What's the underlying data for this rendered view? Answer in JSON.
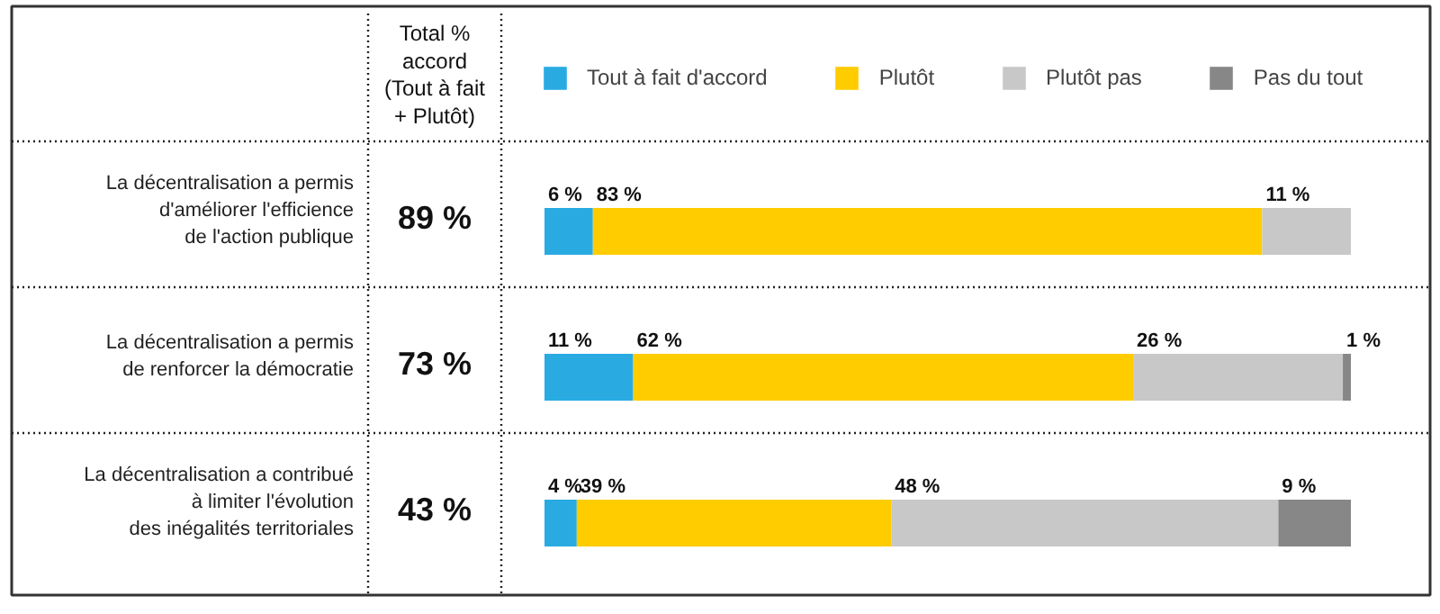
{
  "chart_data": {
    "type": "bar",
    "stacked": true,
    "orientation": "horizontal",
    "legend": "top",
    "categories": [
      "La décentralisation a permis\nd'améliorer l'efficience\nde l'action publique",
      "La décentralisation a permis\nde renforcer la démocratie",
      "La décentralisation a contribué\nà limiter l'évolution\ndes inégalités territoriales"
    ],
    "series": [
      {
        "name": "Tout à fait d'accord",
        "color": "#29abe2",
        "values": [
          6,
          11,
          4
        ],
        "value_labels": [
          "6 %",
          "11 %",
          "4 %"
        ]
      },
      {
        "name": "Plutôt",
        "color": "#ffcc00",
        "values": [
          83,
          62,
          39
        ],
        "value_labels": [
          "83 %",
          "62 %",
          "39 %"
        ]
      },
      {
        "name": "Plutôt pas",
        "color": "#c8c8c8",
        "values": [
          11,
          26,
          48
        ],
        "value_labels": [
          "11 %",
          "26 %",
          "48 %"
        ]
      },
      {
        "name": "Pas du tout",
        "color": "#878787",
        "values": [
          null,
          1,
          9
        ],
        "value_labels": [
          null,
          "1 %",
          "9 %"
        ]
      }
    ],
    "annotations": [
      "Total %\naccord\n(Tout à fait\n+ Plutôt)",
      "89 %",
      "73 %",
      "43 %"
    ]
  }
}
